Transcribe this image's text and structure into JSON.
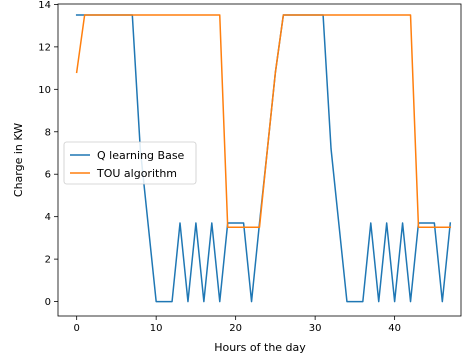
{
  "chart_data": {
    "type": "line",
    "xlabel": "Hours of the day",
    "ylabel": "Charge in KW",
    "xlim": [
      -2.35,
      48.35
    ],
    "ylim": [
      -0.68,
      14.02
    ],
    "xticks": [
      0,
      10,
      20,
      30,
      40
    ],
    "yticks": [
      0,
      2,
      4,
      6,
      8,
      10,
      12,
      14
    ],
    "grid": false,
    "legend_position": "center-left",
    "series": [
      {
        "name": "Q learning Base",
        "color": "#1f77b4",
        "x": [
          0,
          1,
          2,
          3,
          4,
          5,
          6,
          7,
          8,
          9,
          10,
          11,
          12,
          13,
          14,
          15,
          16,
          17,
          18,
          19,
          20,
          21,
          22,
          23,
          24,
          25,
          26,
          27,
          28,
          29,
          30,
          31,
          32,
          33,
          34,
          35,
          36,
          37,
          38,
          39,
          40,
          41,
          42,
          43,
          44,
          45,
          46,
          47
        ],
        "y": [
          13.5,
          13.5,
          13.5,
          13.5,
          13.5,
          13.5,
          13.5,
          13.5,
          7.2,
          3.6,
          0,
          0,
          0,
          3.7,
          0,
          3.7,
          0,
          3.7,
          0,
          3.7,
          3.7,
          3.7,
          0,
          3.7,
          7.2,
          10.8,
          13.5,
          13.5,
          13.5,
          13.5,
          13.5,
          13.5,
          7.2,
          3.6,
          0,
          0,
          0,
          3.7,
          0,
          3.7,
          0,
          3.7,
          0,
          3.7,
          3.7,
          3.7,
          0,
          3.7
        ]
      },
      {
        "name": "TOU algorithm",
        "color": "#ff7f0e",
        "x": [
          0,
          1,
          2,
          3,
          4,
          5,
          6,
          7,
          8,
          9,
          10,
          11,
          12,
          13,
          14,
          15,
          16,
          17,
          18,
          19,
          20,
          21,
          22,
          23,
          24,
          25,
          26,
          27,
          28,
          29,
          30,
          31,
          32,
          33,
          34,
          35,
          36,
          37,
          38,
          39,
          40,
          41,
          42,
          43,
          44,
          45,
          46,
          47
        ],
        "y": [
          10.8,
          13.5,
          13.5,
          13.5,
          13.5,
          13.5,
          13.5,
          13.5,
          13.5,
          13.5,
          13.5,
          13.5,
          13.5,
          13.5,
          13.5,
          13.5,
          13.5,
          13.5,
          13.5,
          3.5,
          3.5,
          3.5,
          3.5,
          3.5,
          7.2,
          10.8,
          13.5,
          13.5,
          13.5,
          13.5,
          13.5,
          13.5,
          13.5,
          13.5,
          13.5,
          13.5,
          13.5,
          13.5,
          13.5,
          13.5,
          13.5,
          13.5,
          13.5,
          3.5,
          3.5,
          3.5,
          3.5,
          3.5
        ]
      }
    ]
  }
}
